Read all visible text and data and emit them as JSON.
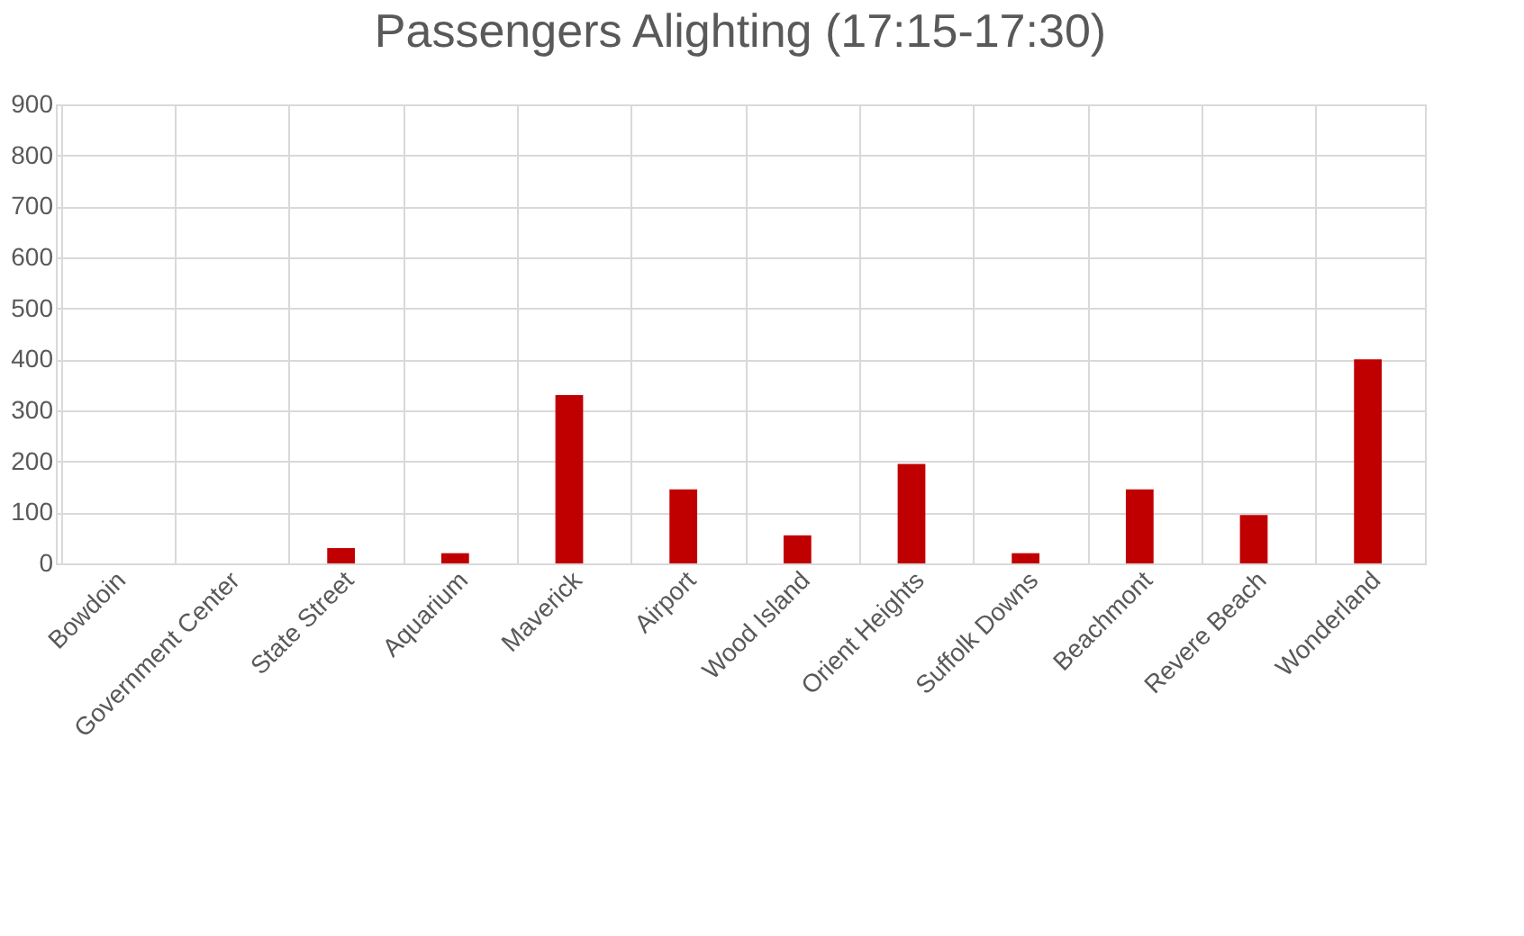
{
  "chart_data": {
    "type": "bar",
    "title": "Passengers Alighting (17:15-17:30)",
    "categories": [
      "Bowdoin",
      "Government Center",
      "State Street",
      "Aquarium",
      "Maverick",
      "Airport",
      "Wood Island",
      "Orient Heights",
      "Suffolk Downs",
      "Beachmont",
      "Revere Beach",
      "Wonderland"
    ],
    "values": [
      0,
      0,
      30,
      20,
      330,
      145,
      55,
      195,
      20,
      145,
      95,
      400
    ],
    "color": "#c00000",
    "ylim": [
      0,
      900
    ],
    "yticks": [
      0,
      100,
      200,
      300,
      400,
      500,
      600,
      700,
      800,
      900
    ],
    "grid": true
  }
}
